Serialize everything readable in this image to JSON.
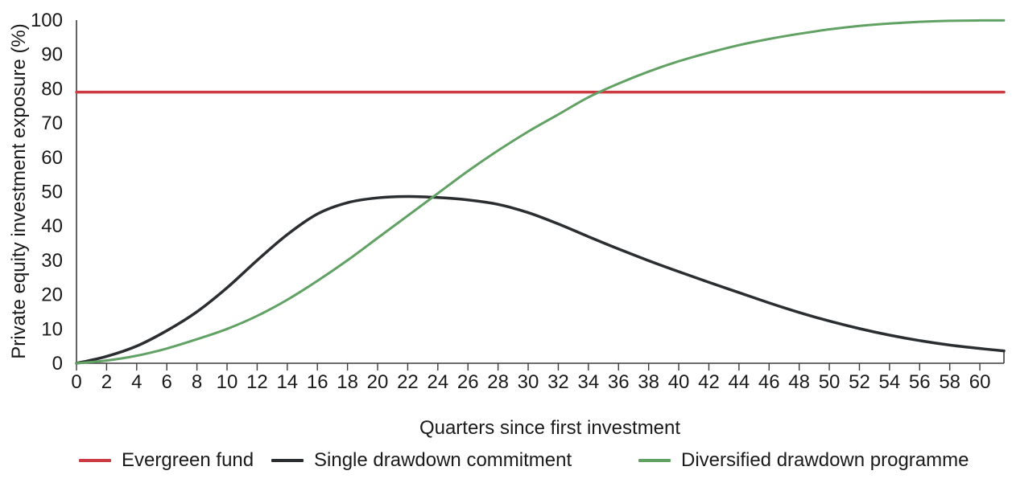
{
  "figure": {
    "background": "#ffffff",
    "text_color": "#1a1a1a",
    "axis_color": "#3c3c3c"
  },
  "chart_data": {
    "type": "line",
    "title": "",
    "xlabel": "Quarters since first investment",
    "ylabel": "Private equity investment exposure (%)",
    "xlim": [
      0,
      61.6
    ],
    "ylim": [
      0,
      100
    ],
    "grid": false,
    "legend_position": "bottom",
    "x_ticks": [
      0,
      2,
      4,
      6,
      8,
      10,
      12,
      14,
      16,
      18,
      20,
      22,
      24,
      26,
      28,
      30,
      32,
      34,
      36,
      38,
      40,
      42,
      44,
      46,
      48,
      50,
      52,
      54,
      56,
      58,
      60
    ],
    "y_ticks": [
      0,
      10,
      20,
      30,
      40,
      50,
      60,
      70,
      80,
      90,
      100
    ],
    "x": [
      0,
      2,
      4,
      6,
      8,
      10,
      12,
      14,
      16,
      18,
      20,
      22,
      24,
      26,
      28,
      30,
      32,
      34,
      36,
      38,
      40,
      42,
      44,
      46,
      48,
      50,
      52,
      54,
      56,
      58,
      60,
      61.6
    ],
    "series": [
      {
        "name": "Evergreen fund",
        "color": "#cc3a42",
        "stroke_width": 3.5,
        "shape": "hline",
        "x": [
          0,
          61.6
        ],
        "values": [
          79,
          79
        ]
      },
      {
        "name": "Single drawdown commitment",
        "color": "#2b2e31",
        "stroke_width": 3.5,
        "shape": "smooth",
        "values": [
          0,
          2,
          5,
          9.5,
          15,
          22,
          30,
          37.5,
          43.5,
          46.8,
          48.2,
          48.6,
          48.3,
          47.6,
          46.3,
          43.9,
          40.6,
          36.9,
          33.3,
          29.9,
          26.7,
          23.6,
          20.6,
          17.6,
          14.8,
          12.3,
          10.1,
          8.2,
          6.6,
          5.3,
          4.3,
          3.6
        ]
      },
      {
        "name": "Diversified drawdown programme",
        "color": "#61a164",
        "stroke_width": 3,
        "shape": "smooth",
        "values": [
          0,
          0.8,
          2.2,
          4.3,
          7,
          10,
          13.8,
          18.5,
          24,
          30,
          36.5,
          43,
          49.5,
          56,
          62,
          67.5,
          72.5,
          77.5,
          81.5,
          85,
          88,
          90.5,
          92.7,
          94.5,
          96,
          97.3,
          98.3,
          99,
          99.5,
          99.8,
          99.9,
          99.9
        ]
      }
    ],
    "annotations": {
      "black_peak": {
        "quarter": 22,
        "value": 48.6
      },
      "green_red_crossing": {
        "quarter": 34.7,
        "value": 79
      },
      "green_black_crossing": {
        "quarter": 23.7,
        "value": 48.4
      }
    }
  }
}
